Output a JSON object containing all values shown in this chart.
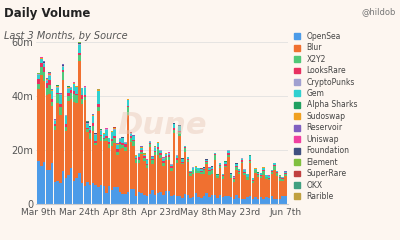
{
  "title": "Daily Volume",
  "subtitle": "Last 3 Months, by Source",
  "watermark": "Dune",
  "social": "@hildob",
  "x_labels": [
    "Mar 9th",
    "Mar 24th",
    "Apr 8th",
    "Apr 23rd",
    "May 8th",
    "May 23rd",
    "Jun 7th"
  ],
  "ylim": [
    0,
    65000000
  ],
  "yticks": [
    0,
    20000000,
    40000000,
    60000000
  ],
  "ytick_labels": [
    "0",
    "20m",
    "40m",
    "60m"
  ],
  "background_color": "#fdf6f0",
  "plot_bg_color": "#fdf6f0",
  "legend_items": [
    "OpenSea",
    "Blur",
    "X2Y2",
    "LooksRare",
    "CryptoPunks",
    "Gem",
    "Alpha Sharks",
    "Sudoswap",
    "Reservoir",
    "Uniswap",
    "Foundation",
    "Element",
    "SuperRare",
    "OKX",
    "Rarible"
  ],
  "colors": {
    "OpenSea": "#4c9be8",
    "Blur": "#f07030",
    "X2Y2": "#50c878",
    "LooksRare": "#e83060",
    "CryptoPunks": "#a0a0d0",
    "Gem": "#30d0d0",
    "Alpha Sharks": "#20a060",
    "Sudoswap": "#f0a020",
    "Reservoir": "#8060c0",
    "Uniswap": "#f040a0",
    "Foundation": "#405080",
    "Element": "#80c040",
    "SuperRare": "#c04040",
    "OKX": "#40a080",
    "Rarible": "#c0a040"
  },
  "num_bars": 92
}
